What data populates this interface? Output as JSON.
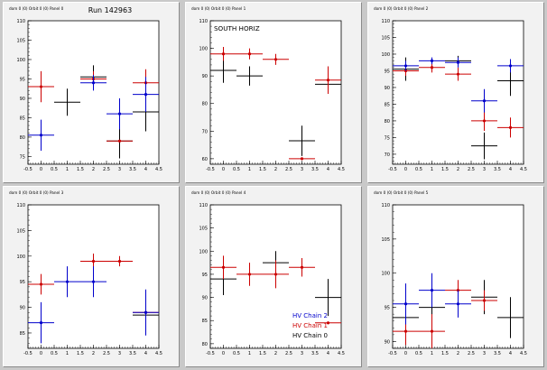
{
  "colors": {
    "chain0": "#000000",
    "chain1": "#cc0000",
    "chain2": "#0000cc"
  },
  "chart_data": [
    {
      "type": "scatter",
      "title": "Run 142963",
      "subtitle": "",
      "panel_label": "dom 0 (0) Orbit 0 (0) Panel 0",
      "xlim": [
        -0.5,
        4.5
      ],
      "ylim": [
        73,
        110
      ],
      "yticks": [
        75,
        80,
        85,
        90,
        95,
        100,
        105,
        110
      ],
      "xticks": [
        -0.5,
        0,
        0.5,
        1,
        1.5,
        2,
        2.5,
        3,
        3.5,
        4,
        4.5
      ],
      "grid": false,
      "series": [
        {
          "key": "chain0",
          "points": [
            {
              "x": 1,
              "xerr": 0.5,
              "y": 89,
              "yerr": 3.5
            },
            {
              "x": 2,
              "xerr": 0.5,
              "y": 95.5,
              "yerr": 3
            },
            {
              "x": 3,
              "xerr": 0.5,
              "y": 79,
              "yerr": 4.5
            },
            {
              "x": 4,
              "xerr": 0.5,
              "y": 86.5,
              "yerr": 5
            }
          ]
        },
        {
          "key": "chain1",
          "points": [
            {
              "x": 0,
              "xerr": 0.5,
              "y": 93,
              "yerr": 4
            },
            {
              "x": 2,
              "xerr": 0.5,
              "y": 95,
              "yerr": 2
            },
            {
              "x": 3,
              "xerr": 0.5,
              "y": 79,
              "yerr": 0.3
            },
            {
              "x": 4,
              "xerr": 0.5,
              "y": 94,
              "yerr": 3.5
            }
          ]
        },
        {
          "key": "chain2",
          "points": [
            {
              "x": 0,
              "xerr": 0.5,
              "y": 80.5,
              "yerr": 4
            },
            {
              "x": 2,
              "xerr": 0.5,
              "y": 94,
              "yerr": 2
            },
            {
              "x": 3,
              "xerr": 0.5,
              "y": 86,
              "yerr": 4
            },
            {
              "x": 4,
              "xerr": 0.5,
              "y": 91,
              "yerr": 4.5
            }
          ]
        }
      ]
    },
    {
      "type": "scatter",
      "title": "SOUTH HORIZ",
      "subtitle": "",
      "panel_label": "dom 0 (0) Orbit 0 (0) Panel 1",
      "xlim": [
        -0.5,
        4.5
      ],
      "ylim": [
        58,
        110
      ],
      "yticks": [
        60,
        70,
        80,
        90,
        100,
        110
      ],
      "xticks": [
        -0.5,
        0,
        0.5,
        1,
        1.5,
        2,
        2.5,
        3,
        3.5,
        4,
        4.5
      ],
      "grid": false,
      "series": [
        {
          "key": "chain0",
          "points": [
            {
              "x": 0,
              "xerr": 0.5,
              "y": 92,
              "yerr": 4.5
            },
            {
              "x": 1,
              "xerr": 0.5,
              "y": 90,
              "yerr": 3.5
            },
            {
              "x": 3,
              "xerr": 0.5,
              "y": 66.5,
              "yerr": 5.5
            },
            {
              "x": 4,
              "xerr": 0.5,
              "y": 87,
              "yerr": 3
            }
          ]
        },
        {
          "key": "chain1",
          "points": [
            {
              "x": 0,
              "xerr": 0.5,
              "y": 98,
              "yerr": 2.5
            },
            {
              "x": 1,
              "xerr": 0.5,
              "y": 98,
              "yerr": 2
            },
            {
              "x": 2,
              "xerr": 0.5,
              "y": 96,
              "yerr": 2
            },
            {
              "x": 3,
              "xerr": 0.5,
              "y": 60,
              "yerr": 0.5
            },
            {
              "x": 4,
              "xerr": 0.5,
              "y": 88.5,
              "yerr": 5
            }
          ]
        },
        {
          "key": "chain2",
          "points": []
        }
      ]
    },
    {
      "type": "scatter",
      "title": "",
      "subtitle": "",
      "panel_label": "dom 0 (0) Orbit 0 (0) Panel 2",
      "xlim": [
        -0.5,
        4.5
      ],
      "ylim": [
        67,
        110
      ],
      "yticks": [
        70,
        75,
        80,
        85,
        90,
        95,
        100,
        105,
        110
      ],
      "xticks": [
        -0.5,
        0,
        0.5,
        1,
        1.5,
        2,
        2.5,
        3,
        3.5,
        4,
        4.5
      ],
      "grid": false,
      "series": [
        {
          "key": "chain0",
          "points": [
            {
              "x": 0,
              "xerr": 0.5,
              "y": 95.5,
              "yerr": 3.5
            },
            {
              "x": 2,
              "xerr": 0.5,
              "y": 98,
              "yerr": 1.5
            },
            {
              "x": 3,
              "xerr": 0.5,
              "y": 72.5,
              "yerr": 4
            },
            {
              "x": 4,
              "xerr": 0.5,
              "y": 92,
              "yerr": 4.5
            }
          ]
        },
        {
          "key": "chain1",
          "points": [
            {
              "x": 0,
              "xerr": 0.5,
              "y": 95,
              "yerr": 1.5
            },
            {
              "x": 1,
              "xerr": 0.5,
              "y": 96,
              "yerr": 1.5
            },
            {
              "x": 2,
              "xerr": 0.5,
              "y": 94,
              "yerr": 2
            },
            {
              "x": 3,
              "xerr": 0.5,
              "y": 80,
              "yerr": 3
            },
            {
              "x": 4,
              "xerr": 0.5,
              "y": 78,
              "yerr": 3
            }
          ]
        },
        {
          "key": "chain2",
          "points": [
            {
              "x": 0,
              "xerr": 0.5,
              "y": 96.5,
              "yerr": 1.5
            },
            {
              "x": 1,
              "xerr": 0.5,
              "y": 98,
              "yerr": 1
            },
            {
              "x": 2,
              "xerr": 0.5,
              "y": 97.5,
              "yerr": 1.5
            },
            {
              "x": 3,
              "xerr": 0.5,
              "y": 86,
              "yerr": 3.5
            },
            {
              "x": 4,
              "xerr": 0.5,
              "y": 96.5,
              "yerr": 2
            }
          ]
        }
      ]
    },
    {
      "type": "scatter",
      "title": "",
      "subtitle": "",
      "panel_label": "dom 0 (0) Orbit 0 (0) Panel 3",
      "xlim": [
        -0.5,
        4.5
      ],
      "ylim": [
        82,
        110
      ],
      "yticks": [
        85,
        90,
        95,
        100,
        105,
        110
      ],
      "xticks": [
        -0.5,
        0,
        0.5,
        1,
        1.5,
        2,
        2.5,
        3,
        3.5,
        4,
        4.5
      ],
      "grid": false,
      "series": [
        {
          "key": "chain0",
          "points": [
            {
              "x": 4,
              "xerr": 0.5,
              "y": 88.5,
              "yerr": 0.2
            }
          ]
        },
        {
          "key": "chain1",
          "points": [
            {
              "x": 0,
              "xerr": 0.5,
              "y": 94.5,
              "yerr": 2
            },
            {
              "x": 2,
              "xerr": 0.5,
              "y": 99,
              "yerr": 1.5
            },
            {
              "x": 3,
              "xerr": 0.5,
              "y": 99,
              "yerr": 1
            },
            {
              "x": 4,
              "xerr": 0.5,
              "y": 89,
              "yerr": 0.3
            }
          ]
        },
        {
          "key": "chain2",
          "points": [
            {
              "x": 0,
              "xerr": 0.5,
              "y": 87,
              "yerr": 4
            },
            {
              "x": 1,
              "xerr": 0.5,
              "y": 95,
              "yerr": 3
            },
            {
              "x": 2,
              "xerr": 0.5,
              "y": 95,
              "yerr": 3
            },
            {
              "x": 4,
              "xerr": 0.5,
              "y": 89,
              "yerr": 4.5
            }
          ]
        }
      ]
    },
    {
      "type": "scatter",
      "title": "",
      "subtitle": "",
      "panel_label": "dom 0 (0) Orbit 0 (0) Panel 4",
      "xlim": [
        -0.5,
        4.5
      ],
      "ylim": [
        79,
        110
      ],
      "yticks": [
        80,
        85,
        90,
        95,
        100,
        105,
        110
      ],
      "xticks": [
        -0.5,
        0,
        0.5,
        1,
        1.5,
        2,
        2.5,
        3,
        3.5,
        4,
        4.5
      ],
      "grid": false,
      "legend": {
        "position": "bottom-right",
        "entries": [
          {
            "key": "chain2",
            "label": "HV Chain 2"
          },
          {
            "key": "chain1",
            "label": "HV Chain 1"
          },
          {
            "key": "chain0",
            "label": "HV Chain 0"
          }
        ]
      },
      "series": [
        {
          "key": "chain0",
          "points": [
            {
              "x": 0,
              "xerr": 0.5,
              "y": 94,
              "yerr": 3.5
            },
            {
              "x": 2,
              "xerr": 0.5,
              "y": 97.5,
              "yerr": 2.5
            },
            {
              "x": 4,
              "xerr": 0.5,
              "y": 90,
              "yerr": 4
            }
          ]
        },
        {
          "key": "chain1",
          "points": [
            {
              "x": 0,
              "xerr": 0.5,
              "y": 96.5,
              "yerr": 2.5
            },
            {
              "x": 1,
              "xerr": 0.5,
              "y": 95,
              "yerr": 2.5
            },
            {
              "x": 2,
              "xerr": 0.5,
              "y": 95,
              "yerr": 3
            },
            {
              "x": 3,
              "xerr": 0.5,
              "y": 96.5,
              "yerr": 2
            },
            {
              "x": 4,
              "xerr": 0.5,
              "y": 84.5,
              "yerr": 0.3
            }
          ]
        },
        {
          "key": "chain2",
          "points": []
        }
      ]
    },
    {
      "type": "scatter",
      "title": "",
      "subtitle": "",
      "panel_label": "dom 0 (0) Orbit 0 (0) Panel 5",
      "xlim": [
        -0.5,
        4.5
      ],
      "ylim": [
        89,
        110
      ],
      "yticks": [
        90,
        95,
        100,
        105,
        110
      ],
      "xticks": [
        -0.5,
        0,
        0.5,
        1,
        1.5,
        2,
        2.5,
        3,
        3.5,
        4,
        4.5
      ],
      "grid": false,
      "series": [
        {
          "key": "chain0",
          "points": [
            {
              "x": 0,
              "xerr": 0.5,
              "y": 93.5,
              "yerr": 3.5
            },
            {
              "x": 1,
              "xerr": 0.5,
              "y": 95,
              "yerr": 3
            },
            {
              "x": 3,
              "xerr": 0.5,
              "y": 96.5,
              "yerr": 2.5
            },
            {
              "x": 4,
              "xerr": 0.5,
              "y": 93.5,
              "yerr": 3
            }
          ]
        },
        {
          "key": "chain1",
          "points": [
            {
              "x": 0,
              "xerr": 0.5,
              "y": 91.5,
              "yerr": 2
            },
            {
              "x": 1,
              "xerr": 0.5,
              "y": 91.5,
              "yerr": 2.5
            },
            {
              "x": 2,
              "xerr": 0.5,
              "y": 97.5,
              "yerr": 1.5
            },
            {
              "x": 3,
              "xerr": 0.5,
              "y": 96,
              "yerr": 1.5
            }
          ]
        },
        {
          "key": "chain2",
          "points": [
            {
              "x": 0,
              "xerr": 0.5,
              "y": 95.5,
              "yerr": 3
            },
            {
              "x": 1,
              "xerr": 0.5,
              "y": 97.5,
              "yerr": 2.5
            },
            {
              "x": 2,
              "xerr": 0.5,
              "y": 95.5,
              "yerr": 2
            }
          ]
        }
      ]
    }
  ]
}
